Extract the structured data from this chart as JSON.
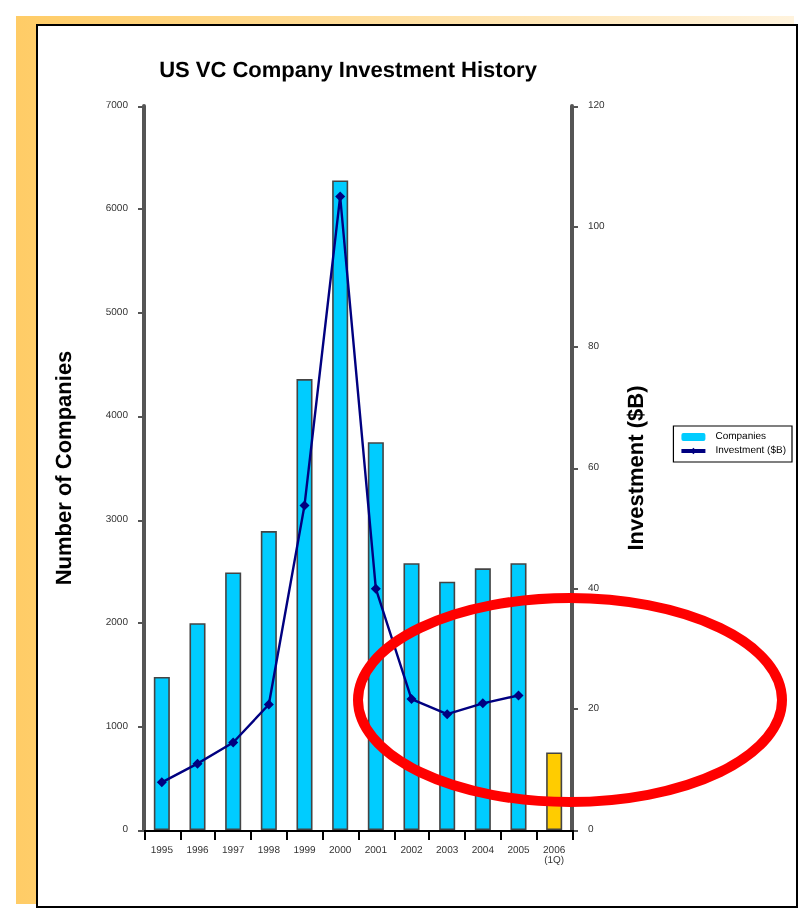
{
  "chart_data": {
    "type": "bar",
    "title": "US VC Company Investment History",
    "categories": [
      "1995",
      "1996",
      "1997",
      "1998",
      "1999",
      "2000",
      "2001",
      "2002",
      "2003",
      "2004",
      "2005",
      "2006\n(1Q)"
    ],
    "series": [
      {
        "name": "Companies",
        "color": "#00ccff",
        "colors": [
          "#00ccff",
          "#00ccff",
          "#00ccff",
          "#00ccff",
          "#00ccff",
          "#00ccff",
          "#00ccff",
          "#00ccff",
          "#00ccff",
          "#00ccff",
          "#00ccff",
          "#ffcc00"
        ],
        "values": [
          1480,
          2000,
          2490,
          2890,
          4360,
          6280,
          3750,
          2580,
          2400,
          2530,
          2580,
          750
        ]
      },
      {
        "name": "Investment ($B)",
        "type": "line",
        "axis": "y2",
        "color": "#000080",
        "marker": "diamond",
        "values": [
          7.9,
          11,
          14.5,
          20.8,
          53.8,
          105,
          40,
          21.7,
          19.2,
          21,
          22.3,
          null
        ]
      }
    ],
    "ylabel": "Number of Companies",
    "y2label": "Investment ($B)",
    "ylim": [
      0,
      7000
    ],
    "yticks": [
      0,
      1000,
      2000,
      3000,
      4000,
      5000,
      6000,
      7000
    ],
    "y2lim": [
      0,
      120
    ],
    "y2ticks": [
      0,
      20,
      40,
      60,
      80,
      100,
      120
    ],
    "grid": false,
    "legend": "right"
  }
}
